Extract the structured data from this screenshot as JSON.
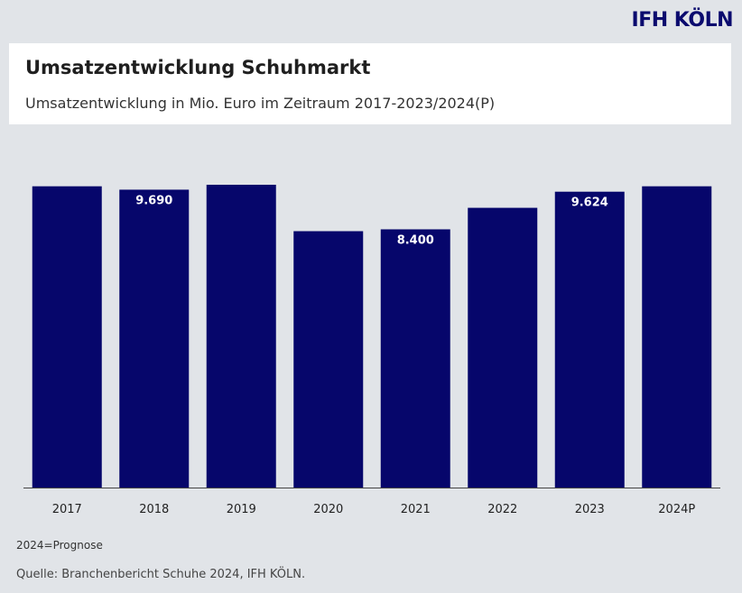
{
  "brand": "IFH KÖLN",
  "header": {
    "title": "Umsatzentwicklung Schuhmarkt",
    "subtitle": "Umsatzentwicklung in Mio. Euro im Zeitraum 2017-2023/2024(P)"
  },
  "footer": {
    "note": "2024=Prognose",
    "source": "Quelle: Branchenbericht Schuhe 2024, IFH KÖLN."
  },
  "colors": {
    "bar": "#06066b",
    "background": "#e1e4e8",
    "axis": "#444444"
  },
  "chart_data": {
    "type": "bar",
    "categories": [
      "2017",
      "2018",
      "2019",
      "2020",
      "2021",
      "2022",
      "2023",
      "2024P"
    ],
    "values": [
      9800,
      9690,
      9850,
      8340,
      8400,
      9100,
      9624,
      9800
    ],
    "data_labels": [
      "",
      "9.690",
      "",
      "",
      "8.400",
      "",
      "9.624",
      ""
    ],
    "title": "Umsatzentwicklung Schuhmarkt",
    "subtitle": "Umsatzentwicklung in Mio. Euro im Zeitraum 2017-2023/2024(P)",
    "xlabel": "",
    "ylabel": "",
    "ylim": [
      0,
      9850
    ],
    "grid": false,
    "legend": "none"
  }
}
